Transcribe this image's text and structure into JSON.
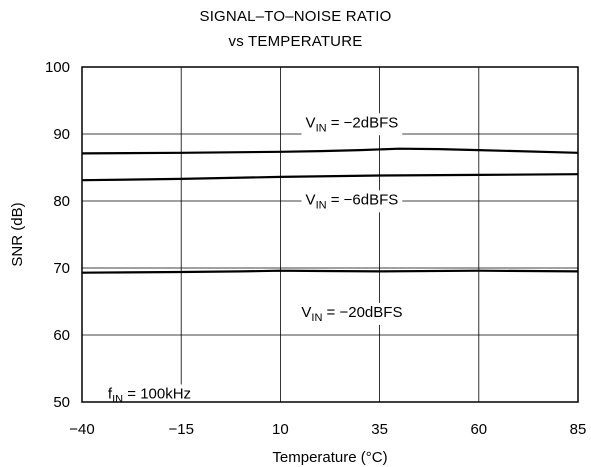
{
  "chart_data": {
    "type": "line",
    "title": "SIGNAL–TO–NOISE RATIO",
    "subtitle": "vs TEMPERATURE",
    "xlabel": "Temperature (°C)",
    "ylabel": "SNR (dB)",
    "xlim": [
      -40,
      85
    ],
    "ylim": [
      50,
      100
    ],
    "x_ticks": [
      -40,
      -15,
      10,
      35,
      60,
      85
    ],
    "x_tick_labels": [
      "−40",
      "−15",
      "10",
      "35",
      "60",
      "85"
    ],
    "y_ticks": [
      50,
      60,
      70,
      80,
      90,
      100
    ],
    "y_tick_labels": [
      "50",
      "60",
      "70",
      "80",
      "90",
      "100"
    ],
    "grid": true,
    "series": [
      {
        "label": {
          "main": "V",
          "sub": "IN",
          "rest": " = −2dBFS"
        },
        "label_at": [
          25,
          91
        ],
        "x": [
          -40,
          -15,
          10,
          20,
          30,
          40,
          50,
          60,
          85
        ],
        "values": [
          87.1,
          87.2,
          87.35,
          87.45,
          87.6,
          87.8,
          87.75,
          87.6,
          87.2
        ]
      },
      {
        "label": {
          "main": "V",
          "sub": "IN",
          "rest": " = −6dBFS"
        },
        "label_at": [
          25,
          79.5
        ],
        "x": [
          -40,
          -15,
          10,
          35,
          60,
          85
        ],
        "values": [
          83.1,
          83.3,
          83.6,
          83.8,
          83.9,
          84.0
        ]
      },
      {
        "label": {
          "main": "V",
          "sub": "IN",
          "rest": " = −20dBFS"
        },
        "label_at": [
          25,
          62.7
        ],
        "x": [
          -40,
          -15,
          0,
          10,
          20,
          35,
          60,
          85
        ],
        "values": [
          69.3,
          69.4,
          69.5,
          69.6,
          69.55,
          69.5,
          69.6,
          69.5
        ]
      }
    ],
    "annotation": {
      "main": "f",
      "sub": "IN",
      "rest": " = 100kHz",
      "at": [
        -38,
        55
      ]
    }
  }
}
